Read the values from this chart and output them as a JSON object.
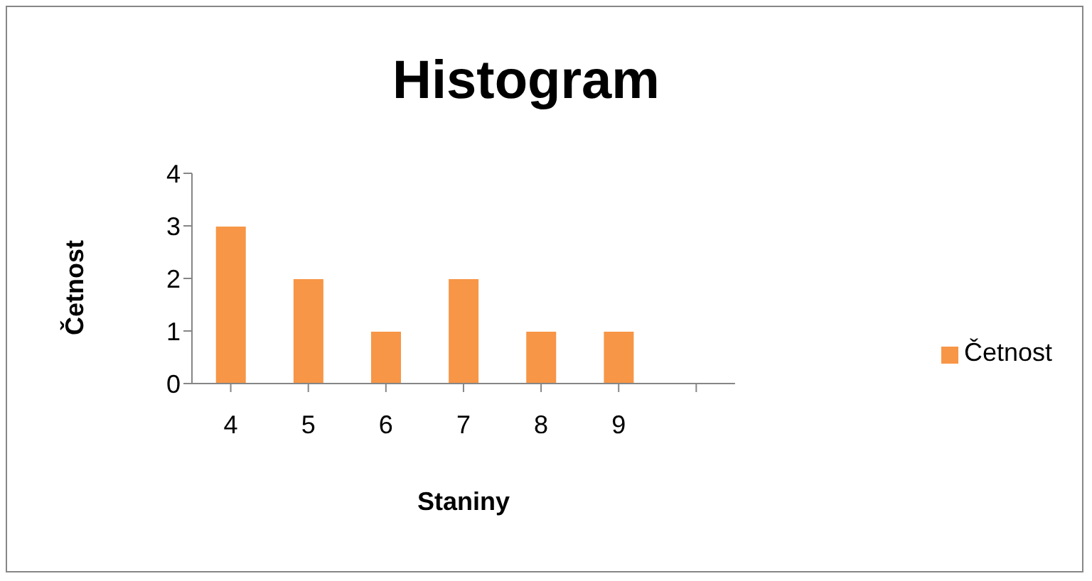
{
  "chart_data": {
    "type": "bar",
    "title": "Histogram",
    "xlabel": "Staniny",
    "ylabel": "Četnost",
    "categories": [
      "4",
      "5",
      "6",
      "7",
      "8",
      "9",
      null
    ],
    "series": [
      {
        "name": "Četnost",
        "color": "#f79646",
        "values": [
          3,
          2,
          1,
          2,
          1,
          1,
          null
        ]
      }
    ],
    "ylim": [
      0,
      4
    ],
    "yticks": [
      0,
      1,
      2,
      3,
      4
    ],
    "grid": false,
    "legend": "right"
  }
}
